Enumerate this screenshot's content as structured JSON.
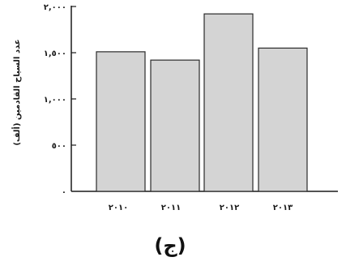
{
  "chart_data": {
    "type": "bar",
    "categories": [
      "٢٠١٠",
      "٢٠١١",
      "٢٠١٢",
      "٢٠١٣"
    ],
    "values": [
      1510,
      1420,
      1920,
      1550
    ],
    "ylabel": "عدد السياح القادمين (ألف)",
    "ylim": [
      0,
      2000
    ],
    "yticks": [
      0,
      500,
      1000,
      1500,
      2000
    ],
    "ytick_labels": [
      "٠",
      "٥٠٠",
      "١,٠٠٠",
      "١,٥٠٠",
      "٢,٠٠٠"
    ],
    "grid": false,
    "colors": {
      "bar_fill": "#d4d4d4",
      "bar_stroke": "#2a2a2a",
      "axis": "#1a1a1a"
    }
  },
  "caption": "(ج)"
}
